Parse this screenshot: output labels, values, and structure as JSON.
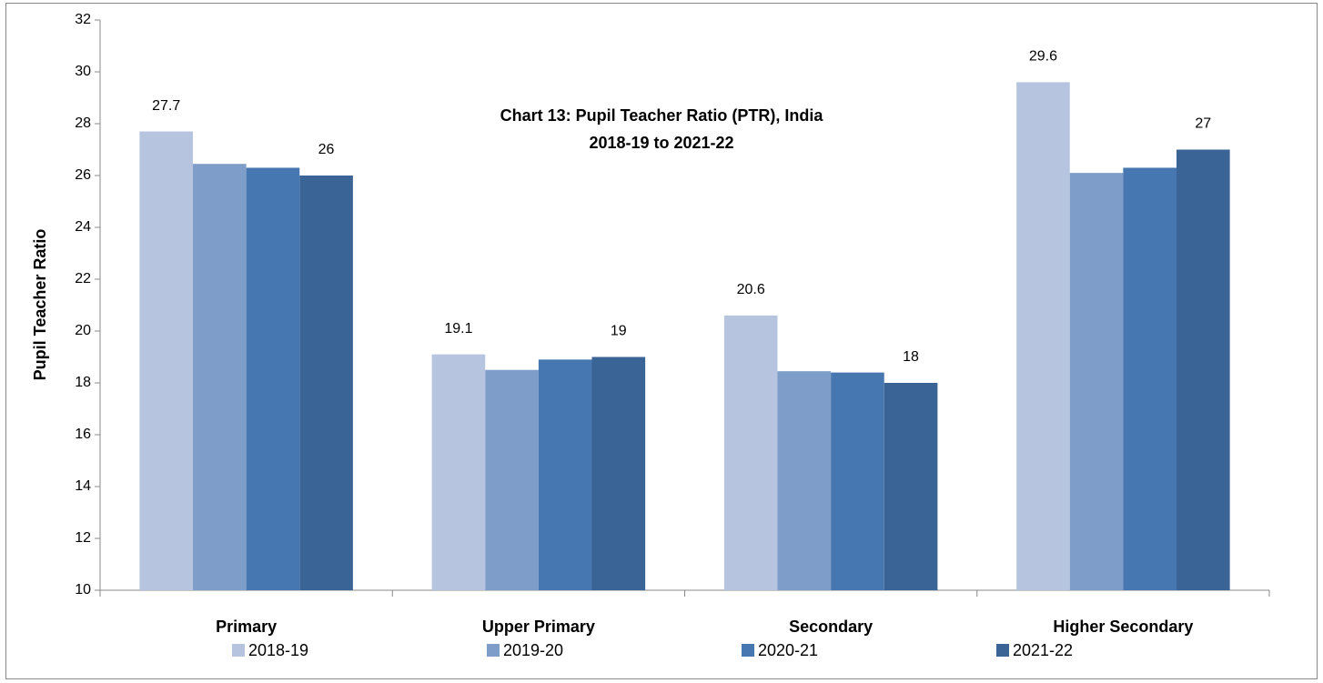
{
  "chart_data": {
    "type": "bar",
    "title": "Chart 13: Pupil Teacher Ratio (PTR), India",
    "subtitle": "2018-19 to 2021-22",
    "y_label": "Pupil Teacher Ratio",
    "categories": [
      "Primary",
      "Upper Primary",
      "Secondary",
      "Higher Secondary"
    ],
    "series": [
      {
        "name": "2018-19",
        "color": "#b7c4e0",
        "values": [
          27.7,
          19.1,
          20.6,
          29.6
        ],
        "data_labels": true
      },
      {
        "name": "2019-20",
        "color": "#7f9dc9",
        "values": [
          26.45,
          18.5,
          18.45,
          26.1
        ],
        "data_labels": false
      },
      {
        "name": "2020-21",
        "color": "#4677b0",
        "values": [
          26.3,
          18.9,
          18.4,
          26.3
        ],
        "data_labels": false
      },
      {
        "name": "2021-22",
        "color": "#3b6496",
        "values": [
          26,
          19,
          18,
          27
        ],
        "data_labels": true
      }
    ],
    "ylim": [
      10,
      32
    ],
    "yticks": [
      10,
      12,
      14,
      16,
      18,
      20,
      22,
      24,
      26,
      28,
      30,
      32
    ],
    "grid": false,
    "legend": "bottom"
  }
}
